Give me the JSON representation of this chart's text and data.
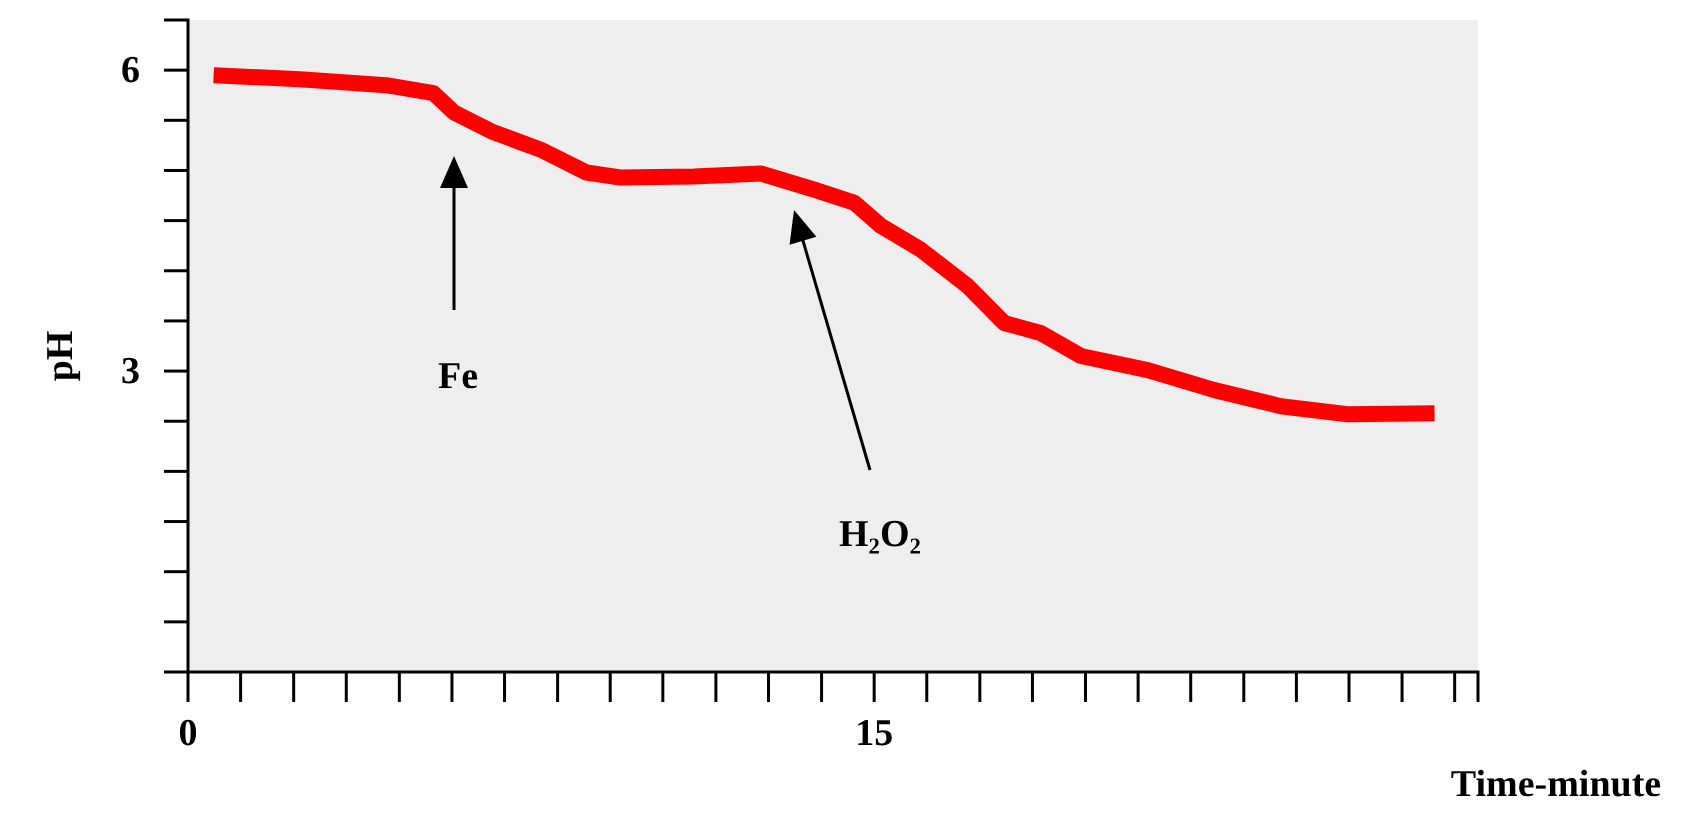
{
  "chart_data": {
    "type": "line",
    "xlabel": "Time-minute",
    "ylabel": "pH",
    "x": [
      0.56,
      2.45,
      4.33,
      5.37,
      5.81,
      6.68,
      7.7,
      8.71,
      9.45,
      11.06,
      12.52,
      13.68,
      14.56,
      15.14,
      16.02,
      17.04,
      17.84,
      18.64,
      19.52,
      20.98,
      22.44,
      23.89,
      25.35,
      27.25
    ],
    "series": [
      {
        "color": "#ff0000",
        "values": [
          5.95,
          5.91,
          5.85,
          5.77,
          5.58,
          5.38,
          5.21,
          4.98,
          4.93,
          4.94,
          4.97,
          4.81,
          4.68,
          4.45,
          4.21,
          3.85,
          3.48,
          3.38,
          3.15,
          3.01,
          2.81,
          2.65,
          2.57,
          2.58
        ]
      }
    ],
    "xlim": [
      0,
      28.2
    ],
    "ylim": [
      0,
      6.5
    ],
    "xticks": [
      0,
      {
        "value": 1.15,
        "label": null
      },
      {
        "value": 2.31,
        "label": null
      },
      {
        "value": 3.46,
        "label": null
      },
      {
        "value": 4.62,
        "label": null
      },
      {
        "value": 5.77,
        "label": null
      },
      {
        "value": 6.92,
        "label": null
      },
      {
        "value": 8.08,
        "label": null
      },
      {
        "value": 9.23,
        "label": null
      },
      {
        "value": 10.38,
        "label": null
      },
      {
        "value": 11.54,
        "label": null
      },
      {
        "value": 12.69,
        "label": null
      },
      {
        "value": 13.85,
        "label": null
      },
      15,
      {
        "value": 16.15,
        "label": null
      },
      {
        "value": 17.31,
        "label": null
      },
      {
        "value": 18.46,
        "label": null
      },
      {
        "value": 19.62,
        "label": null
      },
      {
        "value": 20.77,
        "label": null
      },
      {
        "value": 21.92,
        "label": null
      },
      {
        "value": 23.08,
        "label": null
      },
      {
        "value": 24.23,
        "label": null
      },
      {
        "value": 25.38,
        "label": null
      },
      {
        "value": 26.54,
        "label": null
      },
      {
        "value": 27.69,
        "label": null
      }
    ],
    "yticks": [
      {
        "value": 0.5,
        "label": null
      },
      {
        "value": 1,
        "label": null
      },
      {
        "value": 1.5,
        "label": null
      },
      {
        "value": 2,
        "label": null
      },
      {
        "value": 2.5,
        "label": null
      },
      3,
      {
        "value": 3.5,
        "label": null
      },
      {
        "value": 4,
        "label": null
      },
      {
        "value": 4.5,
        "label": null
      },
      {
        "value": 5,
        "label": null
      },
      {
        "value": 5.5,
        "label": null
      },
      6
    ],
    "annotations": [
      "Fe",
      "H₂O₂"
    ],
    "grid": false,
    "marker": "none",
    "line_style": "solid"
  }
}
